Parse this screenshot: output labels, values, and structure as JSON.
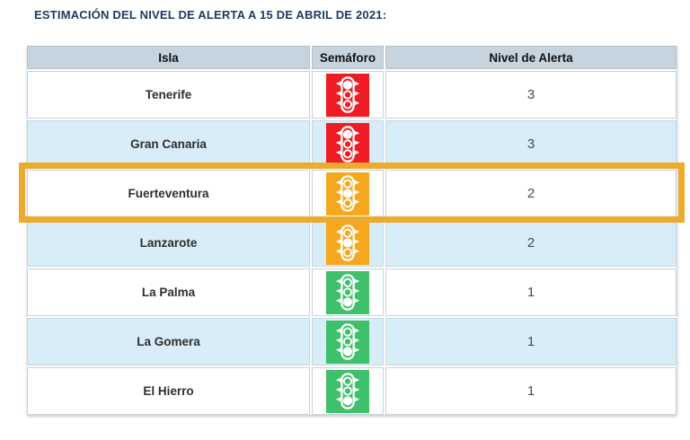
{
  "title": "ESTIMACIÓN DEL NIVEL DE ALERTA A 15 DE ABRIL DE 2021:",
  "table": {
    "columns": [
      "Isla",
      "Semáforo",
      "Nivel de Alerta"
    ],
    "rows": [
      {
        "isla": "Tenerife",
        "semaforo": "red",
        "nivel_de_alerta": "3",
        "highlighted": false
      },
      {
        "isla": "Gran Canaria",
        "semaforo": "red",
        "nivel_de_alerta": "3",
        "highlighted": false
      },
      {
        "isla": "Fuerteventura",
        "semaforo": "orange",
        "nivel_de_alerta": "2",
        "highlighted": true
      },
      {
        "isla": "Lanzarote",
        "semaforo": "orange",
        "nivel_de_alerta": "2",
        "highlighted": false
      },
      {
        "isla": "La Palma",
        "semaforo": "green",
        "nivel_de_alerta": "1",
        "highlighted": false
      },
      {
        "isla": "La Gomera",
        "semaforo": "green",
        "nivel_de_alerta": "1",
        "highlighted": false
      },
      {
        "isla": "El Hierro",
        "semaforo": "green",
        "nivel_de_alerta": "1",
        "highlighted": false
      }
    ]
  },
  "semaforo_states": {
    "red": {
      "color": "#ee1c25",
      "filled_light": "top"
    },
    "orange": {
      "color": "#f5a71d",
      "filled_light": "middle"
    },
    "green": {
      "color": "#3fc06a",
      "filled_light": "bottom"
    }
  },
  "colors": {
    "title_text": "#1d3a5e",
    "header_bg": "#c6d4e0",
    "row_alt_bg": "#d9edf8",
    "highlight_border": "#ecaa2e",
    "number_text": "#4a4a4a"
  }
}
